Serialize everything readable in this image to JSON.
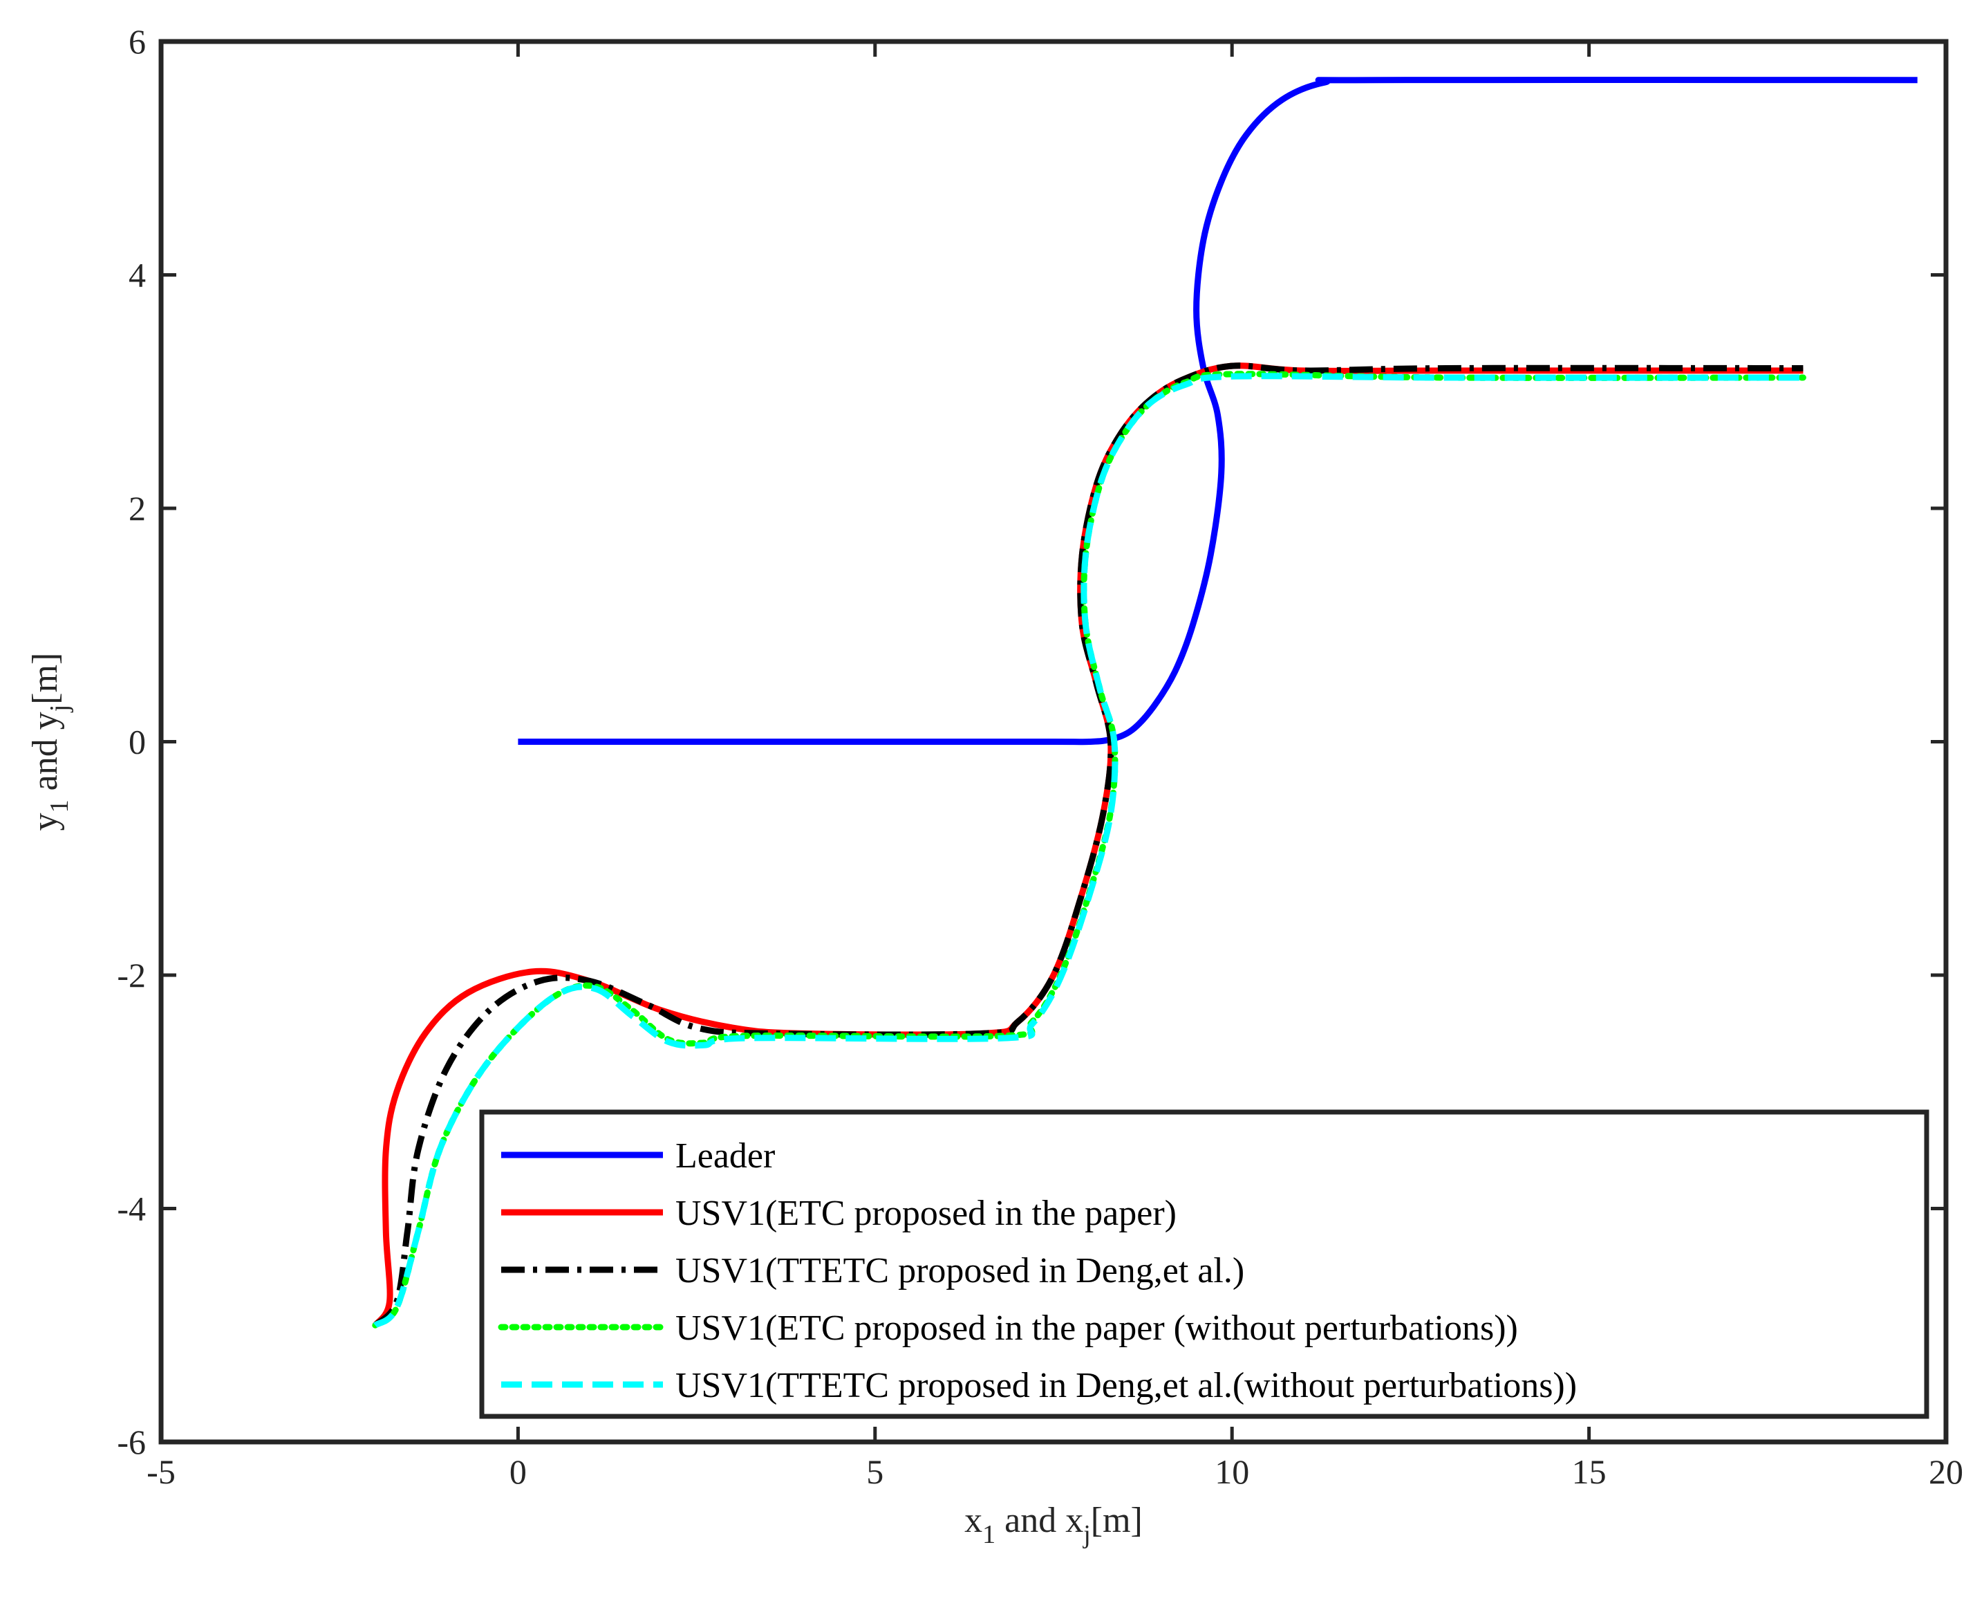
{
  "chart_data": {
    "type": "line",
    "title": "",
    "xlabel": {
      "main": "x",
      "sub1": "1",
      "mid": " and x",
      "sub2": "j",
      "tail": "[m]"
    },
    "ylabel": {
      "main": "y",
      "sub1": "1",
      "mid": " and y",
      "sub2": "j",
      "tail": "[m]"
    },
    "xlim": [
      -5,
      20
    ],
    "ylim": [
      -6,
      6
    ],
    "xticks": [
      -5,
      0,
      5,
      10,
      15,
      20
    ],
    "yticks": [
      -6,
      -4,
      -2,
      0,
      2,
      4,
      6
    ],
    "grid": false,
    "legend_position": "bottom-right",
    "series": [
      {
        "name": "Leader",
        "color": "#0000ff",
        "style": "solid",
        "points": [
          [
            0,
            0
          ],
          [
            6,
            0
          ],
          [
            7.5,
            0
          ],
          [
            8,
            0
          ],
          [
            8.3,
            0.02
          ],
          [
            8.6,
            0.1
          ],
          [
            8.9,
            0.3
          ],
          [
            9.2,
            0.6
          ],
          [
            9.45,
            1.0
          ],
          [
            9.7,
            1.6
          ],
          [
            9.85,
            2.3
          ],
          [
            9.8,
            2.8
          ],
          [
            9.6,
            3.2
          ],
          [
            9.5,
            3.7
          ],
          [
            9.6,
            4.3
          ],
          [
            9.85,
            4.8
          ],
          [
            10.2,
            5.2
          ],
          [
            10.7,
            5.5
          ],
          [
            11.3,
            5.65
          ],
          [
            12,
            5.67
          ],
          [
            19.6,
            5.67
          ]
        ]
      },
      {
        "name": "USV1(ETC proposed in the paper)",
        "color": "#ff0000",
        "style": "solid",
        "points": [
          [
            -2,
            -5
          ],
          [
            -1.8,
            -4.8
          ],
          [
            -1.85,
            -4.2
          ],
          [
            -1.85,
            -3.5
          ],
          [
            -1.7,
            -3.0
          ],
          [
            -1.3,
            -2.5
          ],
          [
            -0.7,
            -2.15
          ],
          [
            0.2,
            -1.97
          ],
          [
            1.0,
            -2.05
          ],
          [
            2.0,
            -2.3
          ],
          [
            3.0,
            -2.45
          ],
          [
            4.0,
            -2.5
          ],
          [
            6.5,
            -2.5
          ],
          [
            7.0,
            -2.4
          ],
          [
            7.5,
            -2.0
          ],
          [
            7.9,
            -1.3
          ],
          [
            8.2,
            -0.6
          ],
          [
            8.3,
            0
          ],
          [
            8.1,
            0.5
          ],
          [
            7.9,
            1.0
          ],
          [
            7.9,
            1.6
          ],
          [
            8.1,
            2.2
          ],
          [
            8.4,
            2.6
          ],
          [
            8.8,
            2.9
          ],
          [
            9.3,
            3.1
          ],
          [
            10.0,
            3.22
          ],
          [
            11.0,
            3.18
          ],
          [
            13.0,
            3.18
          ],
          [
            18.0,
            3.18
          ]
        ]
      },
      {
        "name": "USV1(TTETC proposed in Deng,et al.)",
        "color": "#000000",
        "style": "dashdot",
        "points": [
          [
            -2,
            -5
          ],
          [
            -1.7,
            -4.8
          ],
          [
            -1.55,
            -4.2
          ],
          [
            -1.4,
            -3.5
          ],
          [
            -1.0,
            -2.8
          ],
          [
            -0.4,
            -2.3
          ],
          [
            0.3,
            -2.05
          ],
          [
            1.0,
            -2.05
          ],
          [
            1.8,
            -2.25
          ],
          [
            2.5,
            -2.45
          ],
          [
            3.5,
            -2.5
          ],
          [
            6.5,
            -2.5
          ],
          [
            7.0,
            -2.4
          ],
          [
            7.5,
            -2.0
          ],
          [
            7.9,
            -1.3
          ],
          [
            8.2,
            -0.6
          ],
          [
            8.3,
            0
          ],
          [
            8.1,
            0.5
          ],
          [
            7.9,
            1.0
          ],
          [
            7.9,
            1.6
          ],
          [
            8.1,
            2.2
          ],
          [
            8.4,
            2.6
          ],
          [
            8.8,
            2.9
          ],
          [
            9.3,
            3.1
          ],
          [
            10.0,
            3.22
          ],
          [
            11.0,
            3.18
          ],
          [
            13.0,
            3.2
          ],
          [
            18.0,
            3.2
          ]
        ]
      },
      {
        "name": "USV1(ETC proposed in the paper (without perturbations))",
        "color": "#00ff00",
        "style": "dotted",
        "points": [
          [
            -2,
            -5
          ],
          [
            -1.7,
            -4.85
          ],
          [
            -1.4,
            -4.2
          ],
          [
            -1.1,
            -3.5
          ],
          [
            -0.6,
            -2.9
          ],
          [
            0.0,
            -2.45
          ],
          [
            0.6,
            -2.15
          ],
          [
            1.1,
            -2.1
          ],
          [
            1.6,
            -2.3
          ],
          [
            2.1,
            -2.55
          ],
          [
            2.6,
            -2.58
          ],
          [
            3.2,
            -2.52
          ],
          [
            6.8,
            -2.52
          ],
          [
            7.2,
            -2.4
          ],
          [
            7.6,
            -2.0
          ],
          [
            8.0,
            -1.3
          ],
          [
            8.3,
            -0.6
          ],
          [
            8.35,
            0
          ],
          [
            8.15,
            0.45
          ],
          [
            7.95,
            1.0
          ],
          [
            7.95,
            1.6
          ],
          [
            8.15,
            2.2
          ],
          [
            8.45,
            2.6
          ],
          [
            8.85,
            2.9
          ],
          [
            9.35,
            3.08
          ],
          [
            10.0,
            3.15
          ],
          [
            13.0,
            3.12
          ],
          [
            18.0,
            3.12
          ]
        ]
      },
      {
        "name": "USV1(TTETC proposed in Deng,et al.(without perturbations))",
        "color": "#00ffff",
        "style": "dashed",
        "points": [
          [
            -2,
            -5
          ],
          [
            -1.7,
            -4.85
          ],
          [
            -1.4,
            -4.2
          ],
          [
            -1.1,
            -3.5
          ],
          [
            -0.6,
            -2.9
          ],
          [
            0.0,
            -2.45
          ],
          [
            0.6,
            -2.15
          ],
          [
            1.1,
            -2.12
          ],
          [
            1.6,
            -2.35
          ],
          [
            2.1,
            -2.57
          ],
          [
            2.6,
            -2.6
          ],
          [
            3.2,
            -2.54
          ],
          [
            6.8,
            -2.54
          ],
          [
            7.2,
            -2.42
          ],
          [
            7.6,
            -2.02
          ],
          [
            8.0,
            -1.32
          ],
          [
            8.3,
            -0.62
          ],
          [
            8.35,
            0
          ],
          [
            8.15,
            0.45
          ],
          [
            7.95,
            1.0
          ],
          [
            7.95,
            1.6
          ],
          [
            8.15,
            2.2
          ],
          [
            8.45,
            2.6
          ],
          [
            8.85,
            2.9
          ],
          [
            9.35,
            3.06
          ],
          [
            10.0,
            3.13
          ],
          [
            13.0,
            3.12
          ],
          [
            18.0,
            3.12
          ]
        ]
      }
    ]
  }
}
